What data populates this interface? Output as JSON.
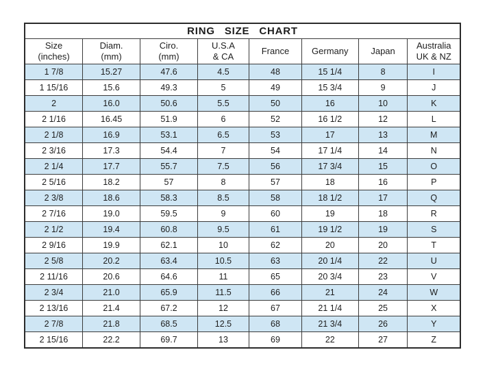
{
  "title": "RING  SIZE  CHART",
  "colors": {
    "stripe": "#cfe6f4",
    "border": "#2a2a2a",
    "text": "#1d1d1d",
    "background": "#ffffff"
  },
  "table": {
    "headers": [
      {
        "line1": "Size",
        "line2": "(inches)"
      },
      {
        "line1": "Diam.",
        "line2": "(mm)"
      },
      {
        "line1": "Ciro.",
        "line2": "(mm)"
      },
      {
        "line1": "U.S.A",
        "line2": "& CA"
      },
      {
        "line1": "France",
        "line2": ""
      },
      {
        "line1": "Germany",
        "line2": ""
      },
      {
        "line1": "Japan",
        "line2": ""
      },
      {
        "line1": "Australia",
        "line2": "UK & NZ"
      }
    ]
  },
  "chart_data": {
    "type": "table",
    "title": "RING SIZE CHART",
    "columns": [
      "Size (inches)",
      "Diam. (mm)",
      "Ciro. (mm)",
      "U.S.A & CA",
      "France",
      "Germany",
      "Japan",
      "Australia UK & NZ"
    ],
    "rows": [
      [
        "1 7/8",
        "15.27",
        "47.6",
        "4.5",
        "48",
        "15 1/4",
        "8",
        "I"
      ],
      [
        "1 15/16",
        "15.6",
        "49.3",
        "5",
        "49",
        "15 3/4",
        "9",
        "J"
      ],
      [
        "2",
        "16.0",
        "50.6",
        "5.5",
        "50",
        "16",
        "10",
        "K"
      ],
      [
        "2 1/16",
        "16.45",
        "51.9",
        "6",
        "52",
        "16 1/2",
        "12",
        "L"
      ],
      [
        "2 1/8",
        "16.9",
        "53.1",
        "6.5",
        "53",
        "17",
        "13",
        "M"
      ],
      [
        "2 3/16",
        "17.3",
        "54.4",
        "7",
        "54",
        "17 1/4",
        "14",
        "N"
      ],
      [
        "2 1/4",
        "17.7",
        "55.7",
        "7.5",
        "56",
        "17 3/4",
        "15",
        "O"
      ],
      [
        "2 5/16",
        "18.2",
        "57",
        "8",
        "57",
        "18",
        "16",
        "P"
      ],
      [
        "2 3/8",
        "18.6",
        "58.3",
        "8.5",
        "58",
        "18 1/2",
        "17",
        "Q"
      ],
      [
        "2 7/16",
        "19.0",
        "59.5",
        "9",
        "60",
        "19",
        "18",
        "R"
      ],
      [
        "2 1/2",
        "19.4",
        "60.8",
        "9.5",
        "61",
        "19 1/2",
        "19",
        "S"
      ],
      [
        "2 9/16",
        "19.9",
        "62.1",
        "10",
        "62",
        "20",
        "20",
        "T"
      ],
      [
        "2 5/8",
        "20.2",
        "63.4",
        "10.5",
        "63",
        "20 1/4",
        "22",
        "U"
      ],
      [
        "2 11/16",
        "20.6",
        "64.6",
        "11",
        "65",
        "20 3/4",
        "23",
        "V"
      ],
      [
        "2 3/4",
        "21.0",
        "65.9",
        "11.5",
        "66",
        "21",
        "24",
        "W"
      ],
      [
        "2 13/16",
        "21.4",
        "67.2",
        "12",
        "67",
        "21 1/4",
        "25",
        "X"
      ],
      [
        "2 7/8",
        "21.8",
        "68.5",
        "12.5",
        "68",
        "21 3/4",
        "26",
        "Y"
      ],
      [
        "2 15/16",
        "22.2",
        "69.7",
        "13",
        "69",
        "22",
        "27",
        "Z"
      ]
    ]
  }
}
